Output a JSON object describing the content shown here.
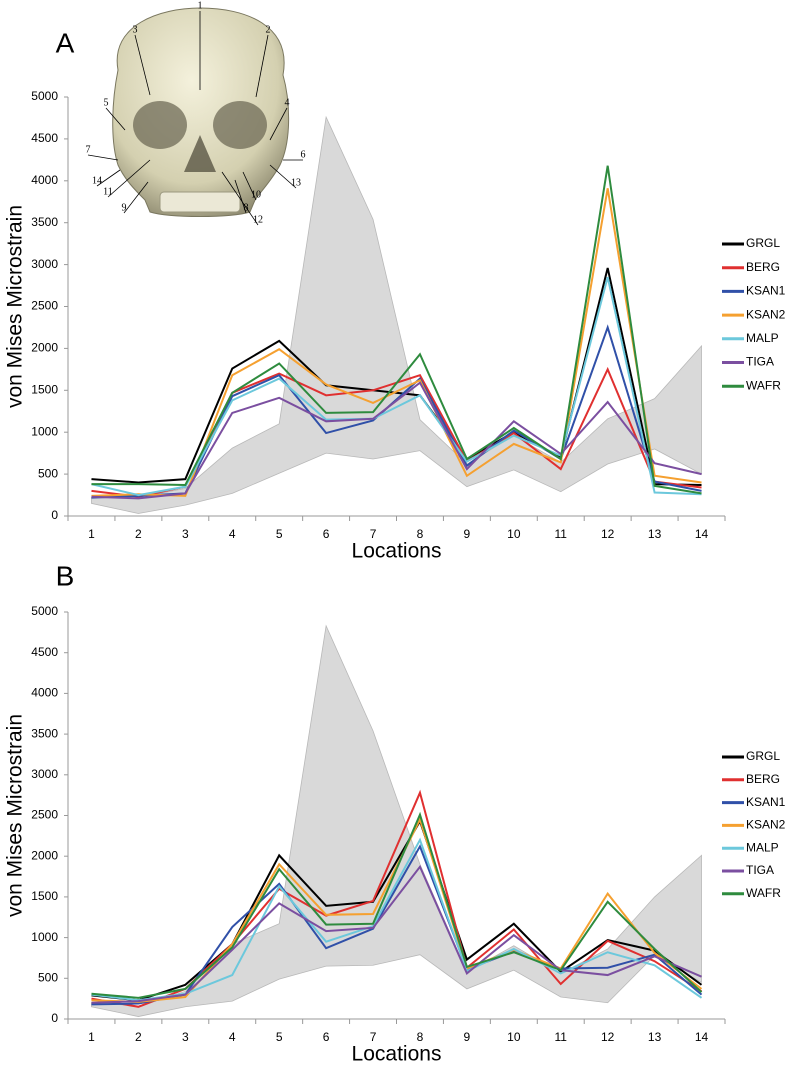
{
  "skull": {
    "labels": [
      "1",
      "2",
      "3",
      "4",
      "5",
      "6",
      "7",
      "8",
      "9",
      "10",
      "11",
      "12",
      "13",
      "14"
    ]
  },
  "chart_data": [
    {
      "type": "line",
      "panel": "A",
      "y_label": "von Mises Microstrain",
      "x_label": "Locations",
      "categories": [
        "1",
        "2",
        "3",
        "4",
        "5",
        "6",
        "7",
        "8",
        "9",
        "10",
        "11",
        "12",
        "13",
        "14"
      ],
      "ylim": [
        0,
        5000
      ],
      "yticks": [
        0,
        500,
        1000,
        1500,
        2000,
        2500,
        3000,
        3500,
        4000,
        4500,
        5000
      ],
      "grid": false,
      "range_band": {
        "color": "#d9d9d9",
        "upper": [
          220,
          220,
          330,
          810,
          1100,
          4760,
          3540,
          1150,
          620,
          960,
          640,
          1160,
          1400,
          2030
        ],
        "lower": [
          150,
          30,
          130,
          270,
          510,
          750,
          680,
          780,
          350,
          550,
          290,
          620,
          800,
          500
        ]
      },
      "series": [
        {
          "name": "GRGL",
          "color": "#000000",
          "values": [
            440,
            400,
            440,
            1760,
            2090,
            1560,
            1500,
            1440,
            680,
            1000,
            700,
            2960,
            380,
            370
          ]
        },
        {
          "name": "BERG",
          "color": "#e03030",
          "values": [
            300,
            230,
            350,
            1470,
            1700,
            1440,
            1500,
            1680,
            650,
            990,
            560,
            1750,
            410,
            340
          ]
        },
        {
          "name": "KSAN1",
          "color": "#3050a8",
          "values": [
            220,
            240,
            270,
            1430,
            1680,
            990,
            1140,
            1640,
            600,
            1020,
            680,
            2250,
            410,
            300
          ]
        },
        {
          "name": "KSAN2",
          "color": "#f5a030",
          "values": [
            240,
            260,
            240,
            1680,
            1990,
            1570,
            1350,
            1620,
            480,
            860,
            640,
            3910,
            480,
            400
          ]
        },
        {
          "name": "MALP",
          "color": "#6cc8dc",
          "values": [
            380,
            250,
            350,
            1380,
            1640,
            1150,
            1160,
            1440,
            650,
            960,
            720,
            2850,
            280,
            260
          ]
        },
        {
          "name": "TIGA",
          "color": "#7b4fa0",
          "values": [
            230,
            210,
            270,
            1230,
            1410,
            1130,
            1160,
            1590,
            560,
            1130,
            740,
            1360,
            630,
            500
          ]
        },
        {
          "name": "WAFR",
          "color": "#2e8b3e",
          "values": [
            380,
            380,
            370,
            1470,
            1820,
            1230,
            1240,
            1930,
            680,
            1050,
            680,
            4180,
            360,
            270
          ]
        }
      ]
    },
    {
      "type": "line",
      "panel": "B",
      "y_label": "von Mises Microstrain",
      "x_label": "Locations",
      "categories": [
        "1",
        "2",
        "3",
        "4",
        "5",
        "6",
        "7",
        "8",
        "9",
        "10",
        "11",
        "12",
        "13",
        "14"
      ],
      "ylim": [
        0,
        5000
      ],
      "yticks": [
        0,
        500,
        1000,
        1500,
        2000,
        2500,
        3000,
        3500,
        4000,
        4500,
        5000
      ],
      "grid": false,
      "range_band": {
        "color": "#d9d9d9",
        "upper": [
          200,
          160,
          340,
          920,
          1170,
          4830,
          3540,
          1900,
          580,
          900,
          560,
          860,
          1500,
          2010
        ],
        "lower": [
          150,
          30,
          150,
          220,
          490,
          650,
          660,
          790,
          370,
          600,
          270,
          200,
          780,
          450
        ]
      },
      "series": [
        {
          "name": "GRGL",
          "color": "#000000",
          "values": [
            290,
            230,
            420,
            920,
            2010,
            1390,
            1440,
            2430,
            730,
            1170,
            580,
            970,
            840,
            420
          ]
        },
        {
          "name": "BERG",
          "color": "#e03030",
          "values": [
            250,
            150,
            370,
            920,
            1600,
            1270,
            1450,
            2780,
            630,
            1100,
            430,
            960,
            710,
            340
          ]
        },
        {
          "name": "KSAN1",
          "color": "#3050a8",
          "values": [
            180,
            190,
            300,
            1130,
            1660,
            870,
            1110,
            2120,
            610,
            830,
            620,
            630,
            790,
            300
          ]
        },
        {
          "name": "KSAN2",
          "color": "#f5a030",
          "values": [
            230,
            210,
            270,
            920,
            1900,
            1280,
            1290,
            2450,
            620,
            850,
            620,
            1540,
            810,
            370
          ]
        },
        {
          "name": "MALP",
          "color": "#6cc8dc",
          "values": [
            300,
            230,
            310,
            540,
            1630,
            950,
            1140,
            2200,
            590,
            860,
            560,
            820,
            660,
            260
          ]
        },
        {
          "name": "TIGA",
          "color": "#7b4fa0",
          "values": [
            200,
            220,
            300,
            850,
            1420,
            1080,
            1120,
            1870,
            560,
            1030,
            600,
            540,
            770,
            520
          ]
        },
        {
          "name": "WAFR",
          "color": "#2e8b3e",
          "values": [
            310,
            260,
            370,
            880,
            1840,
            1160,
            1170,
            2510,
            640,
            820,
            600,
            1440,
            860,
            330
          ]
        }
      ]
    }
  ]
}
